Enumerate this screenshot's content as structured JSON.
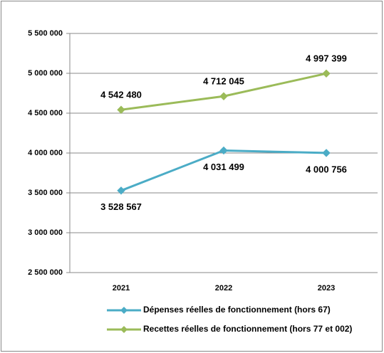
{
  "chart_data": {
    "type": "line",
    "categories": [
      "2021",
      "2022",
      "2023"
    ],
    "series": [
      {
        "name": "Dépenses réelles de fonctionnement (hors 67)",
        "color": "#4bacc6",
        "values": [
          3528567,
          4031499,
          4000756
        ],
        "value_labels": [
          "3 528 567",
          "4 031 499",
          "4 000 756"
        ]
      },
      {
        "name": "Recettes réelles de fonctionnement  (hors 77 et 002)",
        "color": "#9bbb59",
        "values": [
          4542480,
          4712045,
          4997399
        ],
        "value_labels": [
          "4 542 480",
          "4 712 045",
          "4 997 399"
        ]
      }
    ],
    "ylim": [
      2500000,
      5500000
    ],
    "yticks": [
      {
        "value": 2500000,
        "label": "2 500 000"
      },
      {
        "value": 3000000,
        "label": "3 000 000"
      },
      {
        "value": 3500000,
        "label": "3 500 000"
      },
      {
        "value": 4000000,
        "label": "4 000 000"
      },
      {
        "value": 4500000,
        "label": "4 500 000"
      },
      {
        "value": 5000000,
        "label": "5 000 000"
      },
      {
        "value": 5500000,
        "label": "5 500 000"
      }
    ],
    "grid": true,
    "legend": "bottom"
  }
}
